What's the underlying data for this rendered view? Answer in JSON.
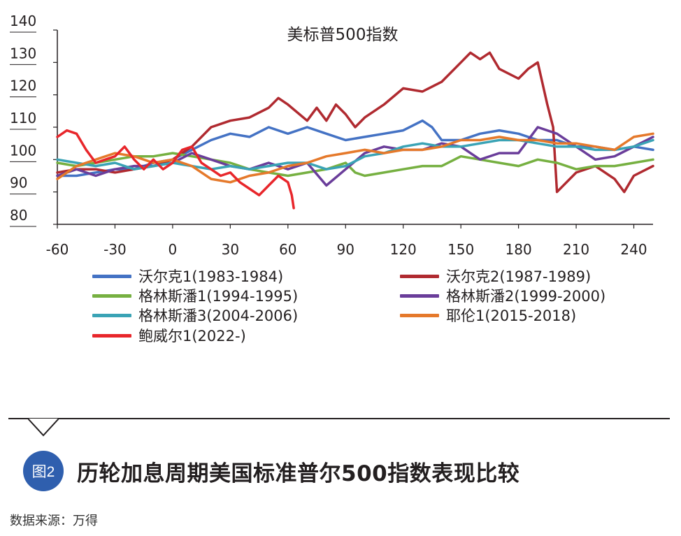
{
  "chart_data": {
    "type": "line",
    "title": "美标普500指数",
    "xlabel": "",
    "ylabel": "",
    "xlim": [
      -60,
      250
    ],
    "ylim": [
      80,
      140
    ],
    "x_ticks": [
      -60,
      -30,
      0,
      30,
      60,
      90,
      120,
      150,
      180,
      210,
      240
    ],
    "y_ticks": [
      80,
      90,
      100,
      110,
      120,
      130,
      140
    ],
    "grid": false,
    "legend_position": "bottom",
    "series": [
      {
        "name": "沃尔克1(1983-1984)",
        "color": "#4472c4",
        "x": [
          -60,
          -50,
          -40,
          -30,
          -20,
          -10,
          0,
          10,
          20,
          30,
          40,
          50,
          60,
          70,
          80,
          90,
          100,
          110,
          120,
          130,
          135,
          140,
          150,
          160,
          170,
          180,
          190,
          200,
          210,
          220,
          230,
          240,
          250
        ],
        "y": [
          95,
          95,
          96,
          97,
          97,
          99,
          100,
          103,
          106,
          108,
          107,
          110,
          108,
          110,
          108,
          106,
          107,
          108,
          109,
          112,
          110,
          106,
          106,
          108,
          109,
          108,
          106,
          106,
          104,
          104,
          103,
          104,
          103
        ]
      },
      {
        "name": "沃尔克2(1987-1989)",
        "color": "#b02a30",
        "x": [
          -60,
          -50,
          -40,
          -30,
          -20,
          -10,
          0,
          10,
          20,
          30,
          40,
          50,
          55,
          60,
          70,
          75,
          80,
          85,
          90,
          95,
          100,
          110,
          120,
          130,
          140,
          150,
          155,
          160,
          165,
          170,
          180,
          185,
          190,
          195,
          198,
          200,
          205,
          210,
          220,
          230,
          235,
          240,
          250
        ],
        "y": [
          96,
          97,
          97,
          96,
          97,
          98,
          100,
          104,
          110,
          112,
          113,
          116,
          119,
          117,
          112,
          116,
          112,
          117,
          114,
          110,
          113,
          117,
          122,
          121,
          124,
          130,
          133,
          131,
          133,
          128,
          125,
          128,
          130,
          117,
          110,
          90,
          93,
          96,
          98,
          94,
          90,
          95,
          98
        ]
      },
      {
        "name": "格林斯潘1(1994-1995)",
        "color": "#76b041",
        "x": [
          -60,
          -50,
          -40,
          -30,
          -20,
          -10,
          0,
          10,
          20,
          30,
          40,
          50,
          60,
          70,
          80,
          90,
          95,
          100,
          110,
          120,
          130,
          140,
          150,
          160,
          170,
          180,
          190,
          200,
          210,
          220,
          230,
          240,
          250
        ],
        "y": [
          99,
          98,
          99,
          100,
          101,
          101,
          102,
          101,
          100,
          99,
          97,
          96,
          95,
          96,
          97,
          99,
          96,
          95,
          96,
          97,
          98,
          98,
          101,
          100,
          99,
          98,
          100,
          99,
          97,
          98,
          98,
          99,
          100
        ]
      },
      {
        "name": "格林斯潘2(1999-2000)",
        "color": "#6a3d9a",
        "x": [
          -60,
          -50,
          -40,
          -30,
          -20,
          -10,
          0,
          10,
          20,
          30,
          40,
          50,
          60,
          70,
          80,
          90,
          100,
          110,
          120,
          130,
          140,
          150,
          160,
          170,
          180,
          190,
          200,
          210,
          220,
          230,
          240,
          250
        ],
        "y": [
          95,
          97,
          95,
          97,
          98,
          98,
          99,
          102,
          100,
          98,
          97,
          99,
          97,
          99,
          92,
          97,
          102,
          104,
          103,
          103,
          105,
          104,
          100,
          102,
          102,
          110,
          108,
          104,
          100,
          101,
          104,
          107
        ]
      },
      {
        "name": "格林斯潘3(2004-2006)",
        "color": "#3aa3b5",
        "x": [
          -60,
          -50,
          -40,
          -30,
          -20,
          -10,
          0,
          10,
          20,
          30,
          40,
          50,
          60,
          70,
          80,
          90,
          100,
          110,
          120,
          130,
          140,
          150,
          160,
          170,
          180,
          190,
          200,
          210,
          220,
          230,
          240,
          250
        ],
        "y": [
          100,
          99,
          98,
          99,
          97,
          98,
          99,
          98,
          97,
          98,
          97,
          98,
          99,
          99,
          97,
          98,
          101,
          102,
          104,
          105,
          104,
          104,
          105,
          106,
          106,
          105,
          104,
          104,
          103,
          103,
          104,
          106
        ]
      },
      {
        "name": "耶伦1(2015-2018)",
        "color": "#e5792b",
        "x": [
          -60,
          -50,
          -40,
          -30,
          -20,
          -10,
          0,
          10,
          20,
          30,
          40,
          50,
          60,
          70,
          80,
          90,
          100,
          110,
          120,
          130,
          140,
          150,
          160,
          170,
          180,
          190,
          200,
          210,
          220,
          230,
          240,
          250
        ],
        "y": [
          94,
          98,
          100,
          102,
          101,
          99,
          100,
          98,
          94,
          93,
          95,
          96,
          98,
          99,
          101,
          102,
          103,
          102,
          103,
          103,
          104,
          106,
          106,
          107,
          106,
          106,
          105,
          105,
          104,
          103,
          107,
          108
        ]
      },
      {
        "name": "鲍威尔1(2022-)",
        "color": "#e8262b",
        "x": [
          -60,
          -55,
          -50,
          -45,
          -40,
          -35,
          -30,
          -25,
          -20,
          -15,
          -10,
          -5,
          0,
          5,
          10,
          15,
          20,
          25,
          30,
          35,
          40,
          45,
          50,
          55,
          60,
          62,
          63
        ],
        "y": [
          107,
          109,
          108,
          103,
          99,
          100,
          101,
          104,
          100,
          97,
          100,
          97,
          99,
          103,
          104,
          99,
          97,
          95,
          96,
          93,
          91,
          89,
          92,
          95,
          93,
          89,
          85
        ]
      }
    ]
  },
  "caption": {
    "badge": "图2",
    "title": "历轮加息周期美国标准普尔500指数表现比较",
    "source": "数据来源：万得"
  }
}
